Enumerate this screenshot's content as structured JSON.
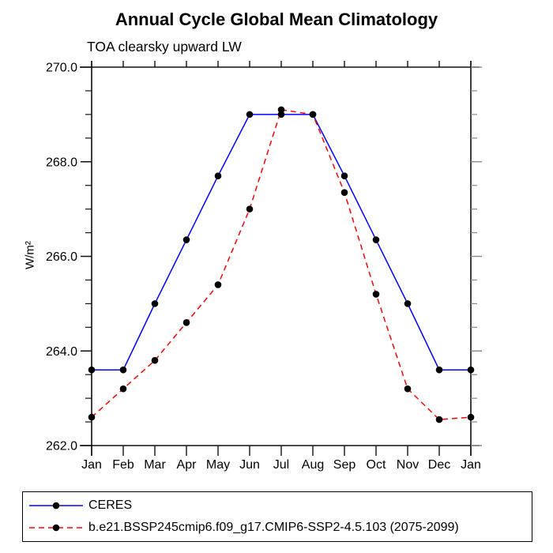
{
  "header": {
    "title": "Annual Cycle Global Mean Climatology",
    "subtitle": "TOA clearsky upward LW"
  },
  "chart_data": {
    "type": "line",
    "title": "Annual Cycle Global Mean Climatology",
    "subtitle": "TOA clearsky upward LW",
    "ylabel": "W/m²",
    "categories": [
      "Jan",
      "Feb",
      "Mar",
      "Apr",
      "May",
      "Jun",
      "Jul",
      "Aug",
      "Sep",
      "Oct",
      "Nov",
      "Dec",
      "Jan"
    ],
    "series": [
      {
        "name": "CERES",
        "color": "#0000ff",
        "line_style": "solid",
        "marker": "filled-circle",
        "marker_color": "#000000",
        "values": [
          263.6,
          263.6,
          265.0,
          266.35,
          267.7,
          269.0,
          269.0,
          269.0,
          267.7,
          266.35,
          265.0,
          263.6,
          263.6
        ]
      },
      {
        "name": "b.e21.BSSP245cmip6.f09_g17.CMIP6-SSP2-4.5.103 (2075-2099)",
        "color": "#ff0000",
        "line_style": "dashed",
        "marker": "filled-circle",
        "marker_color": "#000000",
        "values": [
          262.6,
          263.2,
          263.8,
          264.6,
          265.4,
          267.0,
          269.1,
          269.0,
          267.35,
          265.2,
          263.2,
          262.55,
          262.6
        ]
      }
    ],
    "y_axis": {
      "min": 262.0,
      "max": 270.0,
      "major_step": 2.0,
      "minor_step": 0.5,
      "major_tick_labels": [
        "270.0",
        "268.0",
        "266.0",
        "264.0",
        "262.0"
      ]
    },
    "x_axis": {
      "tick_labels": [
        "Jan",
        "Feb",
        "Mar",
        "Apr",
        "May",
        "Jun",
        "Jul",
        "Aug",
        "Sep",
        "Oct",
        "Nov",
        "Dec",
        "Jan"
      ]
    },
    "legend": {
      "position": "bottom",
      "entries": [
        "CERES",
        "b.e21.BSSP245cmip6.f09_g17.CMIP6-SSP2-4.5.103 (2075-2099)"
      ]
    },
    "grid": false
  }
}
